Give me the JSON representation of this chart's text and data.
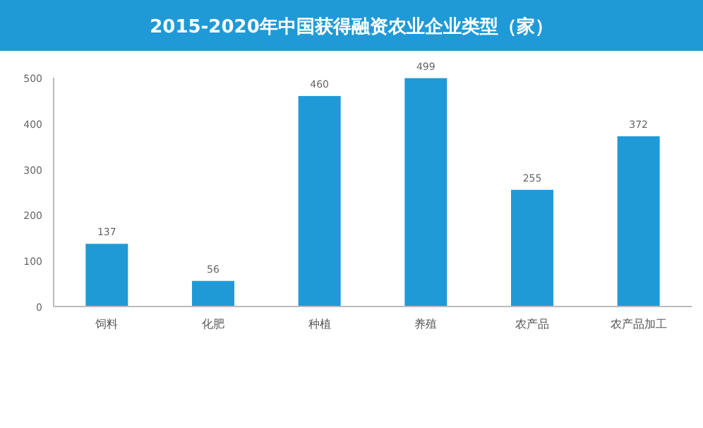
{
  "chart_data": {
    "type": "bar",
    "title": "2015-2020年中国获得融资农业企业类型（家）",
    "categories": [
      "饲料",
      "化肥",
      "种植",
      "养殖",
      "农产品",
      "农产品加工"
    ],
    "values": [
      137,
      56,
      460,
      499,
      255,
      372
    ],
    "color": "#1f9ad6",
    "ylim": [
      0,
      500
    ],
    "yticks": [
      0,
      100,
      200,
      300,
      400,
      500
    ],
    "data_labels": true
  }
}
